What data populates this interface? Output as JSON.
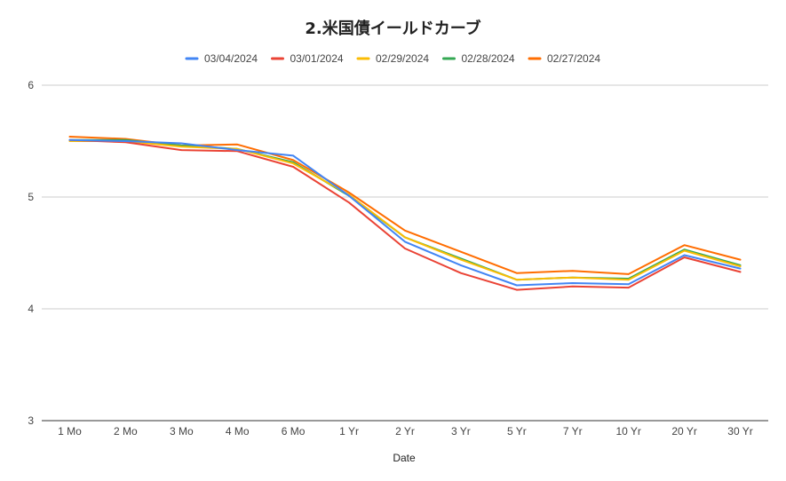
{
  "chart_data": {
    "type": "line",
    "title": "2.米国債イールドカーブ",
    "xlabel": "Date",
    "ylabel": "",
    "ylim": [
      3,
      6
    ],
    "yticks": [
      3,
      4,
      5,
      6
    ],
    "grid": true,
    "legend_position": "top",
    "categories": [
      "1 Mo",
      "2 Mo",
      "3 Mo",
      "4 Mo",
      "6 Mo",
      "1 Yr",
      "2 Yr",
      "3 Yr",
      "5 Yr",
      "7 Yr",
      "10 Yr",
      "20 Yr",
      "30 Yr"
    ],
    "series": [
      {
        "name": "03/04/2024",
        "color": "#4285f4",
        "values": [
          5.51,
          5.5,
          5.48,
          5.42,
          5.37,
          5.01,
          4.6,
          4.39,
          4.21,
          4.23,
          4.22,
          4.48,
          4.36
        ]
      },
      {
        "name": "03/01/2024",
        "color": "#ea4335",
        "values": [
          5.51,
          5.49,
          5.42,
          5.41,
          5.27,
          4.95,
          4.54,
          4.32,
          4.17,
          4.2,
          4.19,
          4.46,
          4.33
        ]
      },
      {
        "name": "02/29/2024",
        "color": "#fbbc04",
        "values": [
          5.5,
          5.5,
          5.45,
          5.43,
          5.3,
          5.02,
          4.64,
          4.44,
          4.26,
          4.28,
          4.26,
          4.52,
          4.38
        ]
      },
      {
        "name": "02/28/2024",
        "color": "#34a853",
        "values": [
          5.51,
          5.51,
          5.46,
          5.43,
          5.31,
          5.01,
          4.64,
          4.45,
          4.26,
          4.28,
          4.27,
          4.53,
          4.39
        ]
      },
      {
        "name": "02/27/2024",
        "color": "#ff6d01",
        "values": [
          5.54,
          5.52,
          5.46,
          5.47,
          5.33,
          5.04,
          4.7,
          4.51,
          4.32,
          4.34,
          4.31,
          4.57,
          4.44
        ]
      }
    ]
  }
}
